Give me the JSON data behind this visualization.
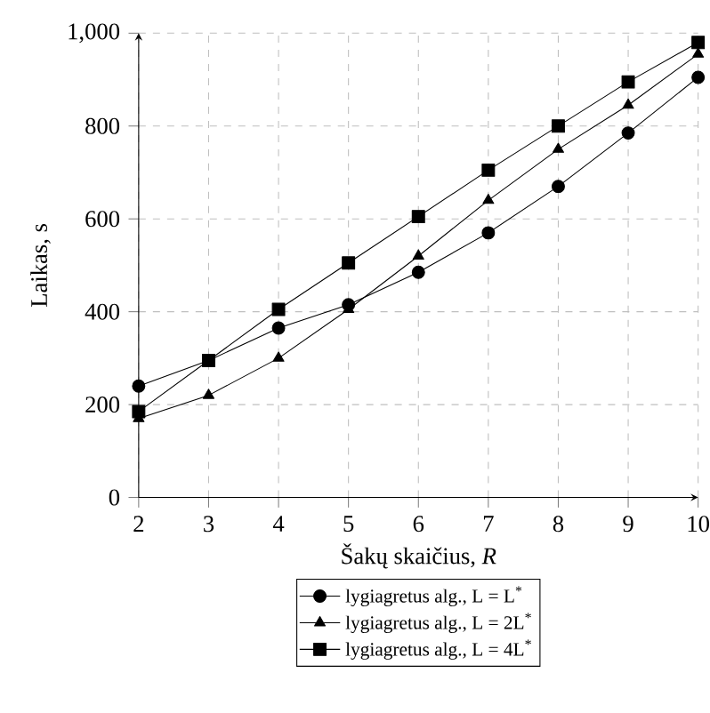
{
  "chart_data": {
    "type": "line",
    "xlabel": "Šakų skaičius, *R*",
    "ylabel": "Laikas, s",
    "x": [
      2,
      3,
      4,
      5,
      6,
      7,
      8,
      9,
      10
    ],
    "series": [
      {
        "name": "lygiagretus alg., L = L$^{*}$",
        "color": "#000000",
        "marker": "circle",
        "values": [
          240,
          295,
          365,
          415,
          485,
          570,
          670,
          785,
          905
        ]
      },
      {
        "name": "lygiagretus alg., L = 2L$^{*}$",
        "color": "#000000",
        "marker": "triangle",
        "values": [
          170,
          220,
          300,
          405,
          520,
          640,
          750,
          845,
          955
        ]
      },
      {
        "name": "lygiagretus alg., L = 4L$^{*}$",
        "color": "#000000",
        "marker": "square",
        "values": [
          185,
          295,
          405,
          505,
          605,
          705,
          800,
          895,
          980
        ]
      }
    ],
    "xlim": [
      2,
      10
    ],
    "ylim": [
      0,
      1000
    ],
    "xticks": [
      2,
      3,
      4,
      5,
      6,
      7,
      8,
      9,
      10
    ],
    "yticks": [
      0,
      200,
      400,
      600,
      800,
      {
        "value": 1000,
        "label": "1,000"
      }
    ],
    "grid": true,
    "legend": "bottom",
    "line_style": "solid"
  }
}
